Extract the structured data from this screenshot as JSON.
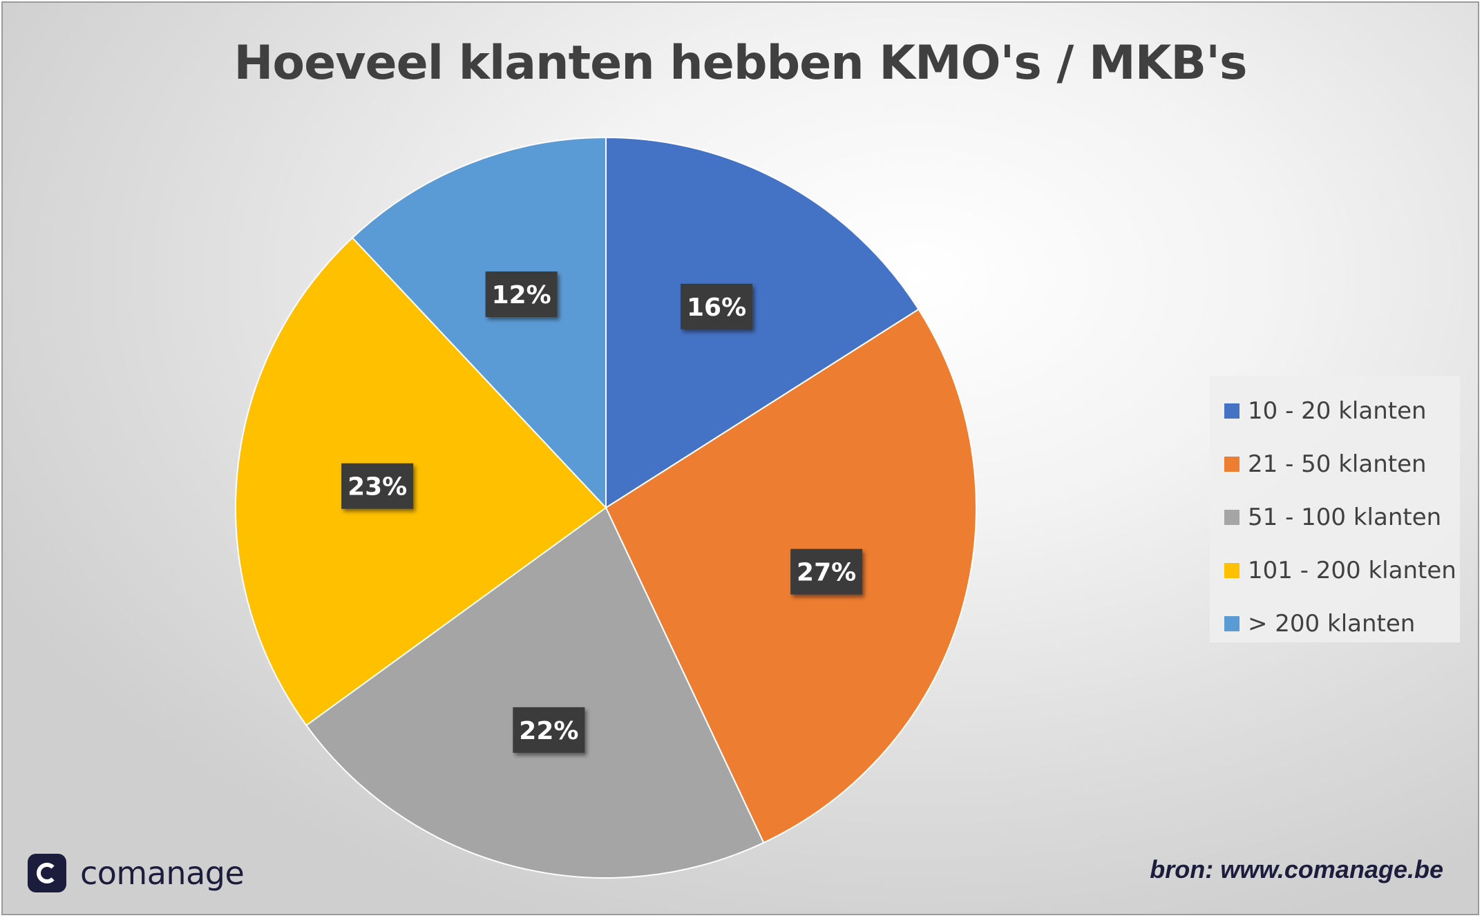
{
  "chart_data": {
    "type": "pie",
    "title": "Hoeveel klanten hebben KMO's / MKB's",
    "categories": [
      "10 - 20 klanten",
      "21 - 50 klanten",
      "51 - 100 klanten",
      "101 - 200 klanten",
      "> 200 klanten"
    ],
    "values": [
      16,
      27,
      22,
      23,
      12
    ],
    "labels": [
      "16%",
      "27%",
      "22%",
      "23%",
      "12%"
    ],
    "colors": [
      "#4472C4",
      "#ED7D31",
      "#A5A5A5",
      "#FFC000",
      "#5B9BD5"
    ],
    "legend_position": "right"
  },
  "branding": {
    "logo_text": "comanage",
    "source": "bron: www.comanage.be"
  }
}
